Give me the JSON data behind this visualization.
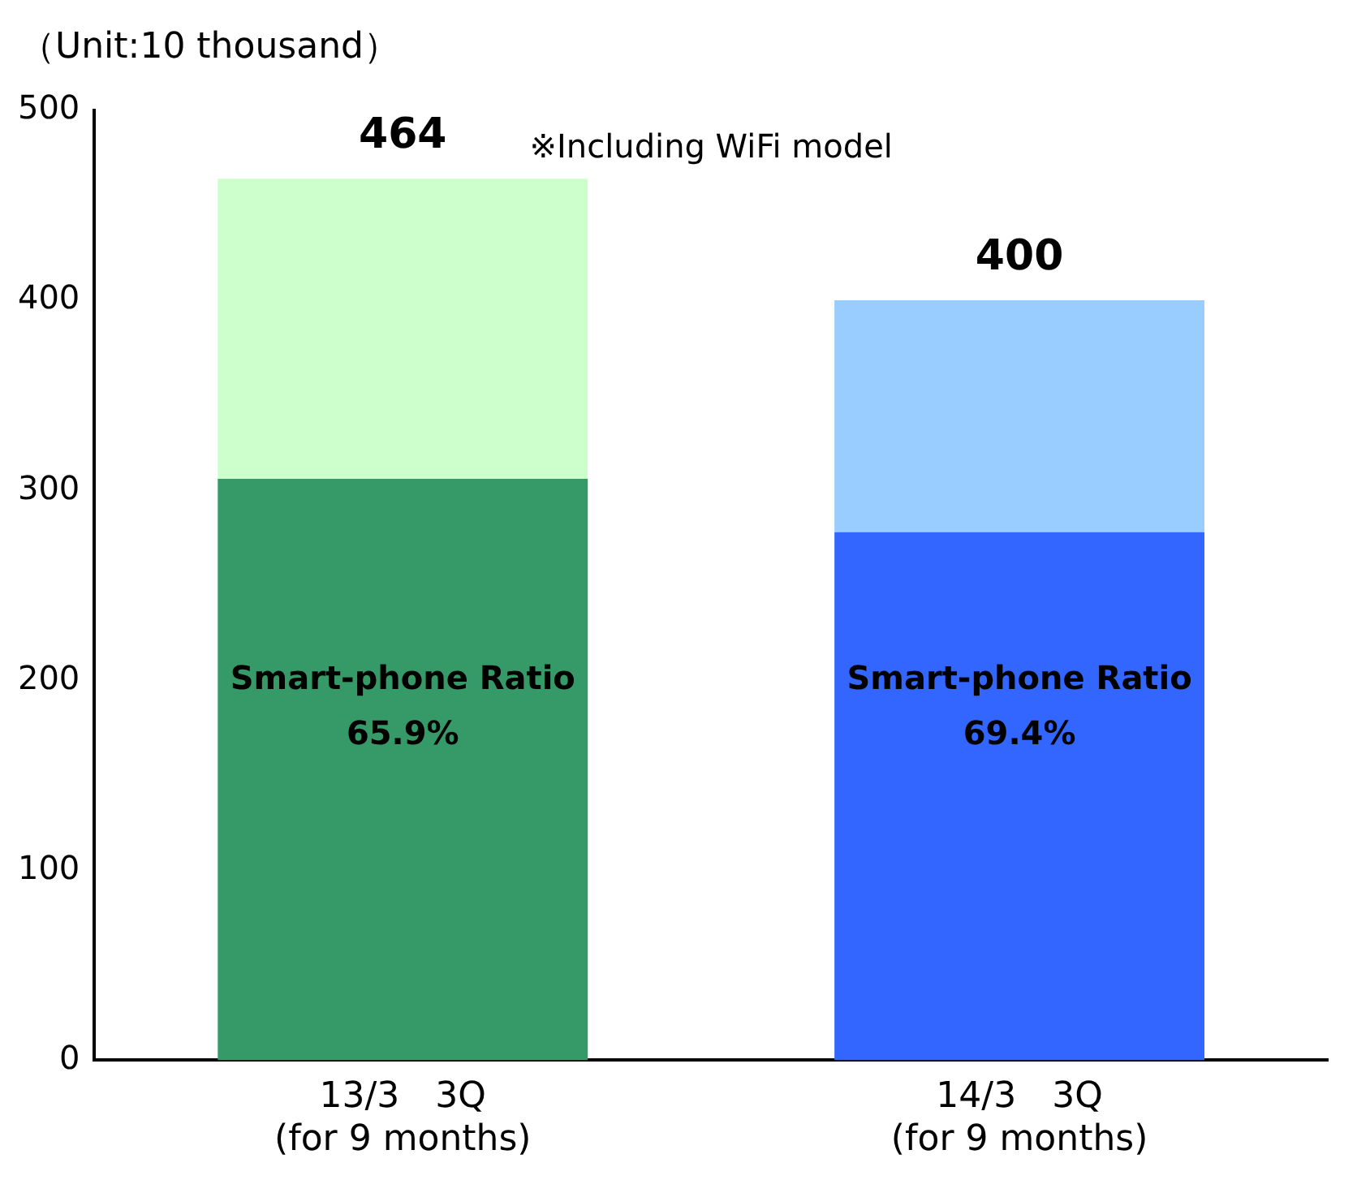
{
  "chart_data": {
    "type": "bar",
    "stacked": true,
    "ylabel": "（Unit:10 thousand）",
    "categories": [
      "13/3　3Q\n(for 9 months)",
      "14/3　3Q\n(for 9 months)"
    ],
    "series": [
      {
        "colors": [
          "#359a68",
          "#3366ff"
        ],
        "values": [
          306,
          278
        ]
      },
      {
        "colors": [
          "#ccffcc",
          "#99ccff"
        ],
        "values": [
          158,
          122
        ]
      }
    ],
    "totals": [
      "464",
      "400"
    ],
    "ylim": [
      0,
      500
    ],
    "yticks": [
      0,
      100,
      200,
      300,
      400,
      500
    ],
    "grid": false,
    "legend": false,
    "annotations": [
      "※Including WiFi model",
      "Smart-phone Ratio\n65.9%",
      "Smart-phone Ratio\n69.4%"
    ]
  }
}
